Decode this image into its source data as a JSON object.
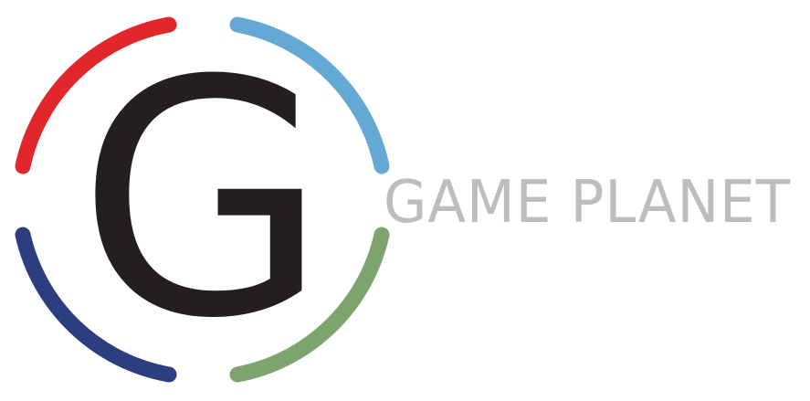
{
  "logo": {
    "monogram": "G",
    "wordmark": "GAME PLANET"
  },
  "colors": {
    "arc_top_left": "#e1262c",
    "arc_top_right": "#64a8d4",
    "arc_bottom_left": "#2c3d80",
    "arc_bottom_right": "#7da46c",
    "monogram": "#231f20",
    "wordmark": "#bdbdbd",
    "background": "#ffffff"
  }
}
